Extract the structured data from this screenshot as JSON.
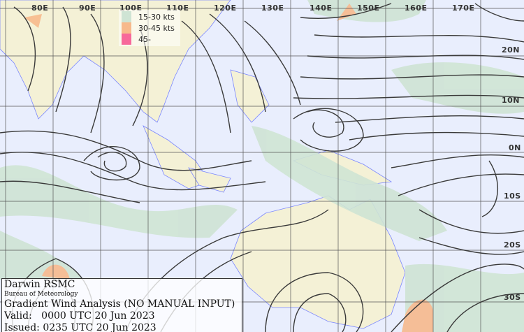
{
  "map": {
    "longitude_labels": [
      "80E",
      "90E",
      "100E",
      "110E",
      "120E",
      "130E",
      "140E",
      "150E",
      "160E",
      "170E"
    ],
    "latitude_labels": [
      "20N",
      "10N",
      "0N",
      "10S",
      "20S",
      "30S"
    ],
    "colors": {
      "ocean": "#e9eefd",
      "land": "#f4f1d6",
      "coastline": "#7a86ff",
      "streamline": "#3a3a3a",
      "grid": "#555555"
    }
  },
  "legend": {
    "items": [
      {
        "label": "15-30 kts",
        "color": "#cfe4d4"
      },
      {
        "label": "30-45 kts",
        "color": "#f7b98c"
      },
      {
        "label": "45-",
        "color": "#f7689a"
      }
    ]
  },
  "info": {
    "center": "Darwin RSMC",
    "agency": "Bureau of Meteorology",
    "title": "Gradient Wind Analysis (NO MANUAL INPUT)",
    "valid": "Valid:   0000 UTC 20 Jun 2023",
    "issued": "Issued: 0235 UTC 20 Jun 2023"
  }
}
